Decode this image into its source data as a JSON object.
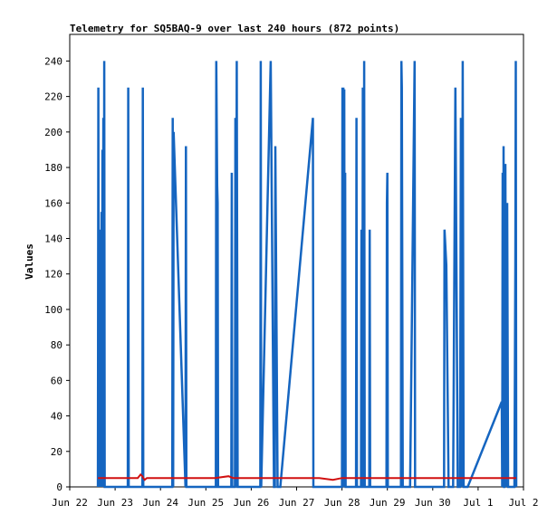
{
  "chart_data": {
    "type": "line",
    "title": "Telemetry for SQ5BAQ-9 over last 240 hours (872 points)",
    "ylabel": "Values",
    "xlabel": "",
    "ylim": [
      0,
      255
    ],
    "yticks": [
      0,
      20,
      40,
      60,
      80,
      100,
      120,
      140,
      160,
      180,
      200,
      220,
      240
    ],
    "xlim": [
      0,
      10
    ],
    "xticks": [
      {
        "x": 0,
        "label": "Jun 22"
      },
      {
        "x": 1,
        "label": "Jun 23"
      },
      {
        "x": 2,
        "label": "Jun 24"
      },
      {
        "x": 3,
        "label": "Jun 25"
      },
      {
        "x": 4,
        "label": "Jun 26"
      },
      {
        "x": 5,
        "label": "Jun 27"
      },
      {
        "x": 6,
        "label": "Jun 28"
      },
      {
        "x": 7,
        "label": "Jun 29"
      },
      {
        "x": 8,
        "label": "Jun 30"
      },
      {
        "x": 9,
        "label": "Jul 1"
      },
      {
        "x": 10,
        "label": "Jul 2"
      }
    ],
    "grid": false,
    "series": [
      {
        "color": "#1565c0",
        "x": [
          0.62,
          0.63,
          0.64,
          0.65,
          0.66,
          0.67,
          0.69,
          0.7,
          0.71,
          0.72,
          0.73,
          0.74,
          0.75,
          0.76,
          0.77,
          0.78,
          0.79,
          0.8,
          0.81,
          1.28,
          1.29,
          1.3,
          1.31,
          1.6,
          1.61,
          1.62,
          1.63,
          2.26,
          2.27,
          2.28,
          2.29,
          2.55,
          2.56,
          2.57,
          3.22,
          3.23,
          3.25,
          3.26,
          3.27,
          3.3,
          3.35,
          3.45,
          3.5,
          3.56,
          3.57,
          3.58,
          3.6,
          3.62,
          3.64,
          3.65,
          3.66,
          3.68,
          3.7,
          4.2,
          4.21,
          4.22,
          4.43,
          4.5,
          4.52,
          4.53,
          4.58,
          4.6,
          4.62,
          4.63,
          4.64,
          5.36,
          5.37,
          6.0,
          6.01,
          6.02,
          6.03,
          6.04,
          6.05,
          6.06,
          6.07,
          6.08,
          6.09,
          6.1,
          6.11,
          6.12,
          6.13,
          6.14,
          6.15,
          6.3,
          6.31,
          6.32,
          6.33,
          6.4,
          6.42,
          6.43,
          6.44,
          6.45,
          6.46,
          6.47,
          6.48,
          6.49,
          6.5,
          6.52,
          6.53,
          6.6,
          6.61,
          6.62,
          6.98,
          6.99,
          7.0,
          7.01,
          7.3,
          7.31,
          7.32,
          7.34,
          7.36,
          7.38,
          7.4,
          7.42,
          7.44,
          7.46,
          7.48,
          7.5,
          7.6,
          7.61,
          7.62,
          8.25,
          8.26,
          8.3,
          8.35,
          8.45,
          8.5,
          8.55,
          8.6,
          8.62,
          8.64,
          8.66,
          8.68,
          8.7,
          8.72,
          8.74,
          8.75,
          8.76,
          8.77,
          9.52,
          9.53,
          9.54,
          9.55,
          9.56,
          9.57,
          9.58,
          9.6,
          9.62,
          9.64,
          9.66,
          9.68,
          9.7,
          9.72,
          9.74,
          9.76,
          9.78,
          9.8,
          9.82,
          9.83,
          9.84
        ],
        "y": [
          0,
          225,
          15,
          145,
          0,
          108,
          55,
          155,
          0,
          190,
          0,
          208,
          0,
          240,
          0,
          0,
          0,
          0,
          0,
          0,
          225,
          0,
          0,
          0,
          225,
          0,
          0,
          0,
          208,
          0,
          200,
          0,
          192,
          0,
          0,
          240,
          170,
          160,
          0,
          0,
          0,
          0,
          0,
          0,
          177,
          0,
          0,
          0,
          0,
          208,
          0,
          240,
          0,
          0,
          240,
          0,
          240,
          0,
          0,
          192,
          0,
          0,
          0,
          0,
          0,
          208,
          0,
          0,
          225,
          0,
          225,
          0,
          224,
          0,
          177,
          0,
          0,
          0,
          0,
          0,
          0,
          0,
          0,
          0,
          0,
          208,
          0,
          0,
          0,
          145,
          0,
          0,
          225,
          0,
          0,
          240,
          0,
          0,
          0,
          0,
          145,
          0,
          0,
          160,
          177,
          0,
          0,
          240,
          225,
          0,
          0,
          0,
          0,
          0,
          0,
          0,
          0,
          0,
          240,
          0,
          0,
          0,
          145,
          125,
          0,
          0,
          225,
          0,
          0,
          208,
          0,
          240,
          0,
          0,
          0,
          0,
          0,
          0,
          0,
          48,
          0,
          177,
          0,
          192,
          0,
          0,
          182,
          0,
          160,
          0,
          0,
          0,
          0,
          0,
          0,
          0,
          0,
          125,
          240,
          0
        ]
      },
      {
        "color": "#d11010",
        "x": [
          0.62,
          1.5,
          1.56,
          1.6,
          1.62,
          1.65,
          1.7,
          3.2,
          3.5,
          3.6,
          4.2,
          5.5,
          5.8,
          6.0,
          9.84
        ],
        "y": [
          5,
          5,
          7,
          6,
          5,
          4,
          5,
          5,
          6,
          5,
          5,
          5,
          4,
          5,
          5
        ]
      }
    ]
  }
}
